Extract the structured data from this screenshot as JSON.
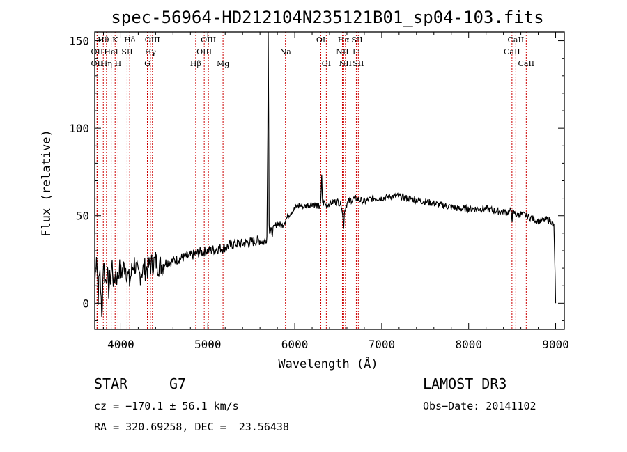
{
  "chart_data": {
    "type": "line",
    "title": "spec-56964-HD212104N235121B01_sp04-103.fits",
    "xlabel": "Wavelength (Å)",
    "ylabel": "Flux (relative)",
    "xlim": [
      3700,
      9100
    ],
    "ylim": [
      -15,
      155
    ],
    "x_ticks": [
      4000,
      5000,
      6000,
      7000,
      8000,
      9000
    ],
    "y_ticks": [
      0,
      50,
      100,
      150
    ],
    "line_color": "#000000",
    "marker_color": "#cc0000",
    "series": [
      {
        "name": "flux",
        "x": [
          3700,
          3720,
          3740,
          3760,
          3780,
          3800,
          3820,
          3840,
          3860,
          3880,
          3900,
          3920,
          3940,
          3960,
          3980,
          4000,
          4050,
          4100,
          4150,
          4200,
          4250,
          4300,
          4350,
          4400,
          4450,
          4500,
          4600,
          4700,
          4800,
          4900,
          5000,
          5100,
          5200,
          5300,
          5400,
          5500,
          5600,
          5650,
          5680,
          5690,
          5695,
          5700,
          5705,
          5710,
          5720,
          5750,
          5800,
          5850,
          5900,
          5950,
          6000,
          6050,
          6100,
          6150,
          6200,
          6250,
          6280,
          6300,
          6310,
          6320,
          6330,
          6340,
          6360,
          6400,
          6450,
          6500,
          6540,
          6555,
          6563,
          6570,
          6590,
          6620,
          6650,
          6700,
          6750,
          6800,
          6900,
          7000,
          7100,
          7200,
          7300,
          7400,
          7500,
          7600,
          7700,
          7800,
          7900,
          8000,
          8100,
          8200,
          8300,
          8400,
          8450,
          8490,
          8500,
          8510,
          8542,
          8560,
          8600,
          8662,
          8700,
          8750,
          8800,
          8850,
          8900,
          8950,
          8960,
          8970,
          8980,
          8990,
          9000
        ],
        "values": [
          10,
          30,
          5,
          20,
          -10,
          25,
          12,
          18,
          8,
          15,
          22,
          10,
          18,
          14,
          20,
          17,
          22,
          12,
          24,
          15,
          19,
          20,
          22,
          24,
          21,
          23,
          24,
          26,
          27,
          29,
          30,
          31,
          32,
          34,
          34,
          35,
          36,
          35,
          38,
          100,
          155,
          110,
          45,
          40,
          40,
          42,
          46,
          44,
          48,
          52,
          54,
          56,
          55,
          56,
          57,
          56,
          55,
          58,
          72,
          58,
          57,
          58,
          56,
          57,
          58,
          58,
          56,
          48,
          44,
          52,
          56,
          58,
          59,
          60,
          59,
          58,
          60,
          60,
          61,
          61,
          60,
          59,
          58,
          57,
          56,
          55,
          54,
          54,
          54,
          54,
          53,
          52,
          52,
          53,
          48,
          52,
          51,
          50,
          51,
          50,
          49,
          48,
          47,
          47,
          48,
          47,
          46,
          45,
          44,
          25,
          0
        ]
      }
    ],
    "spectral_lines": [
      {
        "name": "Hθ",
        "x": 3798,
        "row": 1
      },
      {
        "name": "OII",
        "x": 3727,
        "row": 2
      },
      {
        "name": "OII",
        "x": 3727,
        "row": 3
      },
      {
        "name": "Hη",
        "x": 3835,
        "row": 3
      },
      {
        "name": "K",
        "x": 3934,
        "row": 1
      },
      {
        "name": "HeI",
        "x": 3889,
        "row": 2
      },
      {
        "name": "H",
        "x": 3968,
        "row": 3
      },
      {
        "name": "Hδ",
        "x": 4102,
        "row": 1
      },
      {
        "name": "SII",
        "x": 4072,
        "row": 2
      },
      {
        "name": "OIII",
        "x": 4363,
        "row": 1
      },
      {
        "name": "Hγ",
        "x": 4340,
        "row": 2
      },
      {
        "name": "G",
        "x": 4305,
        "row": 3
      },
      {
        "name": "OIII",
        "x": 5007,
        "row": 1
      },
      {
        "name": "OIII",
        "x": 4959,
        "row": 2
      },
      {
        "name": "Hβ",
        "x": 4861,
        "row": 3
      },
      {
        "name": "Mg",
        "x": 5175,
        "row": 3
      },
      {
        "name": "Na",
        "x": 5893,
        "row": 2
      },
      {
        "name": "OI",
        "x": 6300,
        "row": 1
      },
      {
        "name": "OI",
        "x": 6363,
        "row": 3
      },
      {
        "name": "Hα",
        "x": 6563,
        "row": 1
      },
      {
        "name": "NII",
        "x": 6548,
        "row": 2
      },
      {
        "name": "NII",
        "x": 6583,
        "row": 3
      },
      {
        "name": "SII",
        "x": 6716,
        "row": 1
      },
      {
        "name": "Li",
        "x": 6708,
        "row": 2
      },
      {
        "name": "SII",
        "x": 6731,
        "row": 3
      },
      {
        "name": "CaII",
        "x": 8542,
        "row": 1
      },
      {
        "name": "CaII",
        "x": 8498,
        "row": 2
      },
      {
        "name": "CaII",
        "x": 8662,
        "row": 3
      }
    ]
  },
  "info": {
    "object_class": "STAR",
    "subclass": "G7",
    "survey": "LAMOST DR3",
    "redshift": "cz = −170.1 ± 56.1 km/s",
    "obs_date": "Obs−Date: 20141102",
    "coords": "RA = 320.69258, DEC =  23.56438"
  }
}
